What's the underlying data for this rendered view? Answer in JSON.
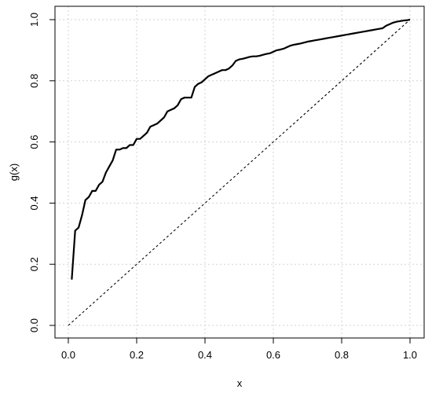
{
  "chart_data": {
    "type": "line",
    "title": "",
    "xlabel": "x",
    "ylabel": "g(x)",
    "xlim": [
      0.0,
      1.0
    ],
    "ylim": [
      0.0,
      1.0
    ],
    "x_ticks": [
      "0.0",
      "0.2",
      "0.4",
      "0.6",
      "0.8",
      "1.0"
    ],
    "y_ticks": [
      "0.0",
      "0.2",
      "0.4",
      "0.6",
      "0.8",
      "1.0"
    ],
    "grid": true,
    "legend": "none",
    "series": [
      {
        "style": "solid",
        "x": [
          0.01,
          0.02,
          0.03,
          0.04,
          0.05,
          0.06,
          0.07,
          0.08,
          0.09,
          0.1,
          0.11,
          0.12,
          0.13,
          0.14,
          0.15,
          0.16,
          0.17,
          0.18,
          0.19,
          0.2,
          0.21,
          0.22,
          0.23,
          0.24,
          0.25,
          0.26,
          0.27,
          0.28,
          0.29,
          0.3,
          0.31,
          0.32,
          0.33,
          0.34,
          0.35,
          0.36,
          0.37,
          0.38,
          0.39,
          0.4,
          0.41,
          0.42,
          0.43,
          0.44,
          0.45,
          0.46,
          0.47,
          0.48,
          0.49,
          0.5,
          0.51,
          0.52,
          0.53,
          0.54,
          0.55,
          0.56,
          0.57,
          0.58,
          0.59,
          0.6,
          0.61,
          0.62,
          0.63,
          0.64,
          0.65,
          0.66,
          0.67,
          0.68,
          0.69,
          0.7,
          0.71,
          0.72,
          0.73,
          0.74,
          0.75,
          0.76,
          0.77,
          0.78,
          0.79,
          0.8,
          0.81,
          0.82,
          0.83,
          0.84,
          0.85,
          0.86,
          0.87,
          0.88,
          0.89,
          0.9,
          0.91,
          0.92,
          0.93,
          0.94,
          0.95,
          0.96,
          0.97,
          0.98,
          0.99,
          1.0
        ],
        "y": [
          0.15,
          0.31,
          0.32,
          0.36,
          0.41,
          0.42,
          0.44,
          0.44,
          0.46,
          0.47,
          0.5,
          0.52,
          0.54,
          0.575,
          0.575,
          0.58,
          0.58,
          0.59,
          0.59,
          0.61,
          0.61,
          0.62,
          0.63,
          0.65,
          0.655,
          0.66,
          0.67,
          0.68,
          0.7,
          0.705,
          0.71,
          0.72,
          0.74,
          0.745,
          0.745,
          0.745,
          0.78,
          0.79,
          0.795,
          0.805,
          0.815,
          0.82,
          0.825,
          0.83,
          0.835,
          0.835,
          0.84,
          0.85,
          0.865,
          0.87,
          0.872,
          0.875,
          0.878,
          0.88,
          0.88,
          0.882,
          0.885,
          0.888,
          0.89,
          0.895,
          0.9,
          0.902,
          0.905,
          0.91,
          0.915,
          0.918,
          0.92,
          0.922,
          0.925,
          0.928,
          0.93,
          0.932,
          0.934,
          0.936,
          0.938,
          0.94,
          0.942,
          0.944,
          0.946,
          0.948,
          0.95,
          0.952,
          0.954,
          0.956,
          0.958,
          0.96,
          0.962,
          0.964,
          0.966,
          0.968,
          0.97,
          0.972,
          0.98,
          0.985,
          0.99,
          0.993,
          0.995,
          0.997,
          0.998,
          1.0
        ]
      },
      {
        "style": "dotted",
        "x": [
          0.0,
          1.0
        ],
        "y": [
          0.0,
          1.0
        ]
      }
    ]
  }
}
